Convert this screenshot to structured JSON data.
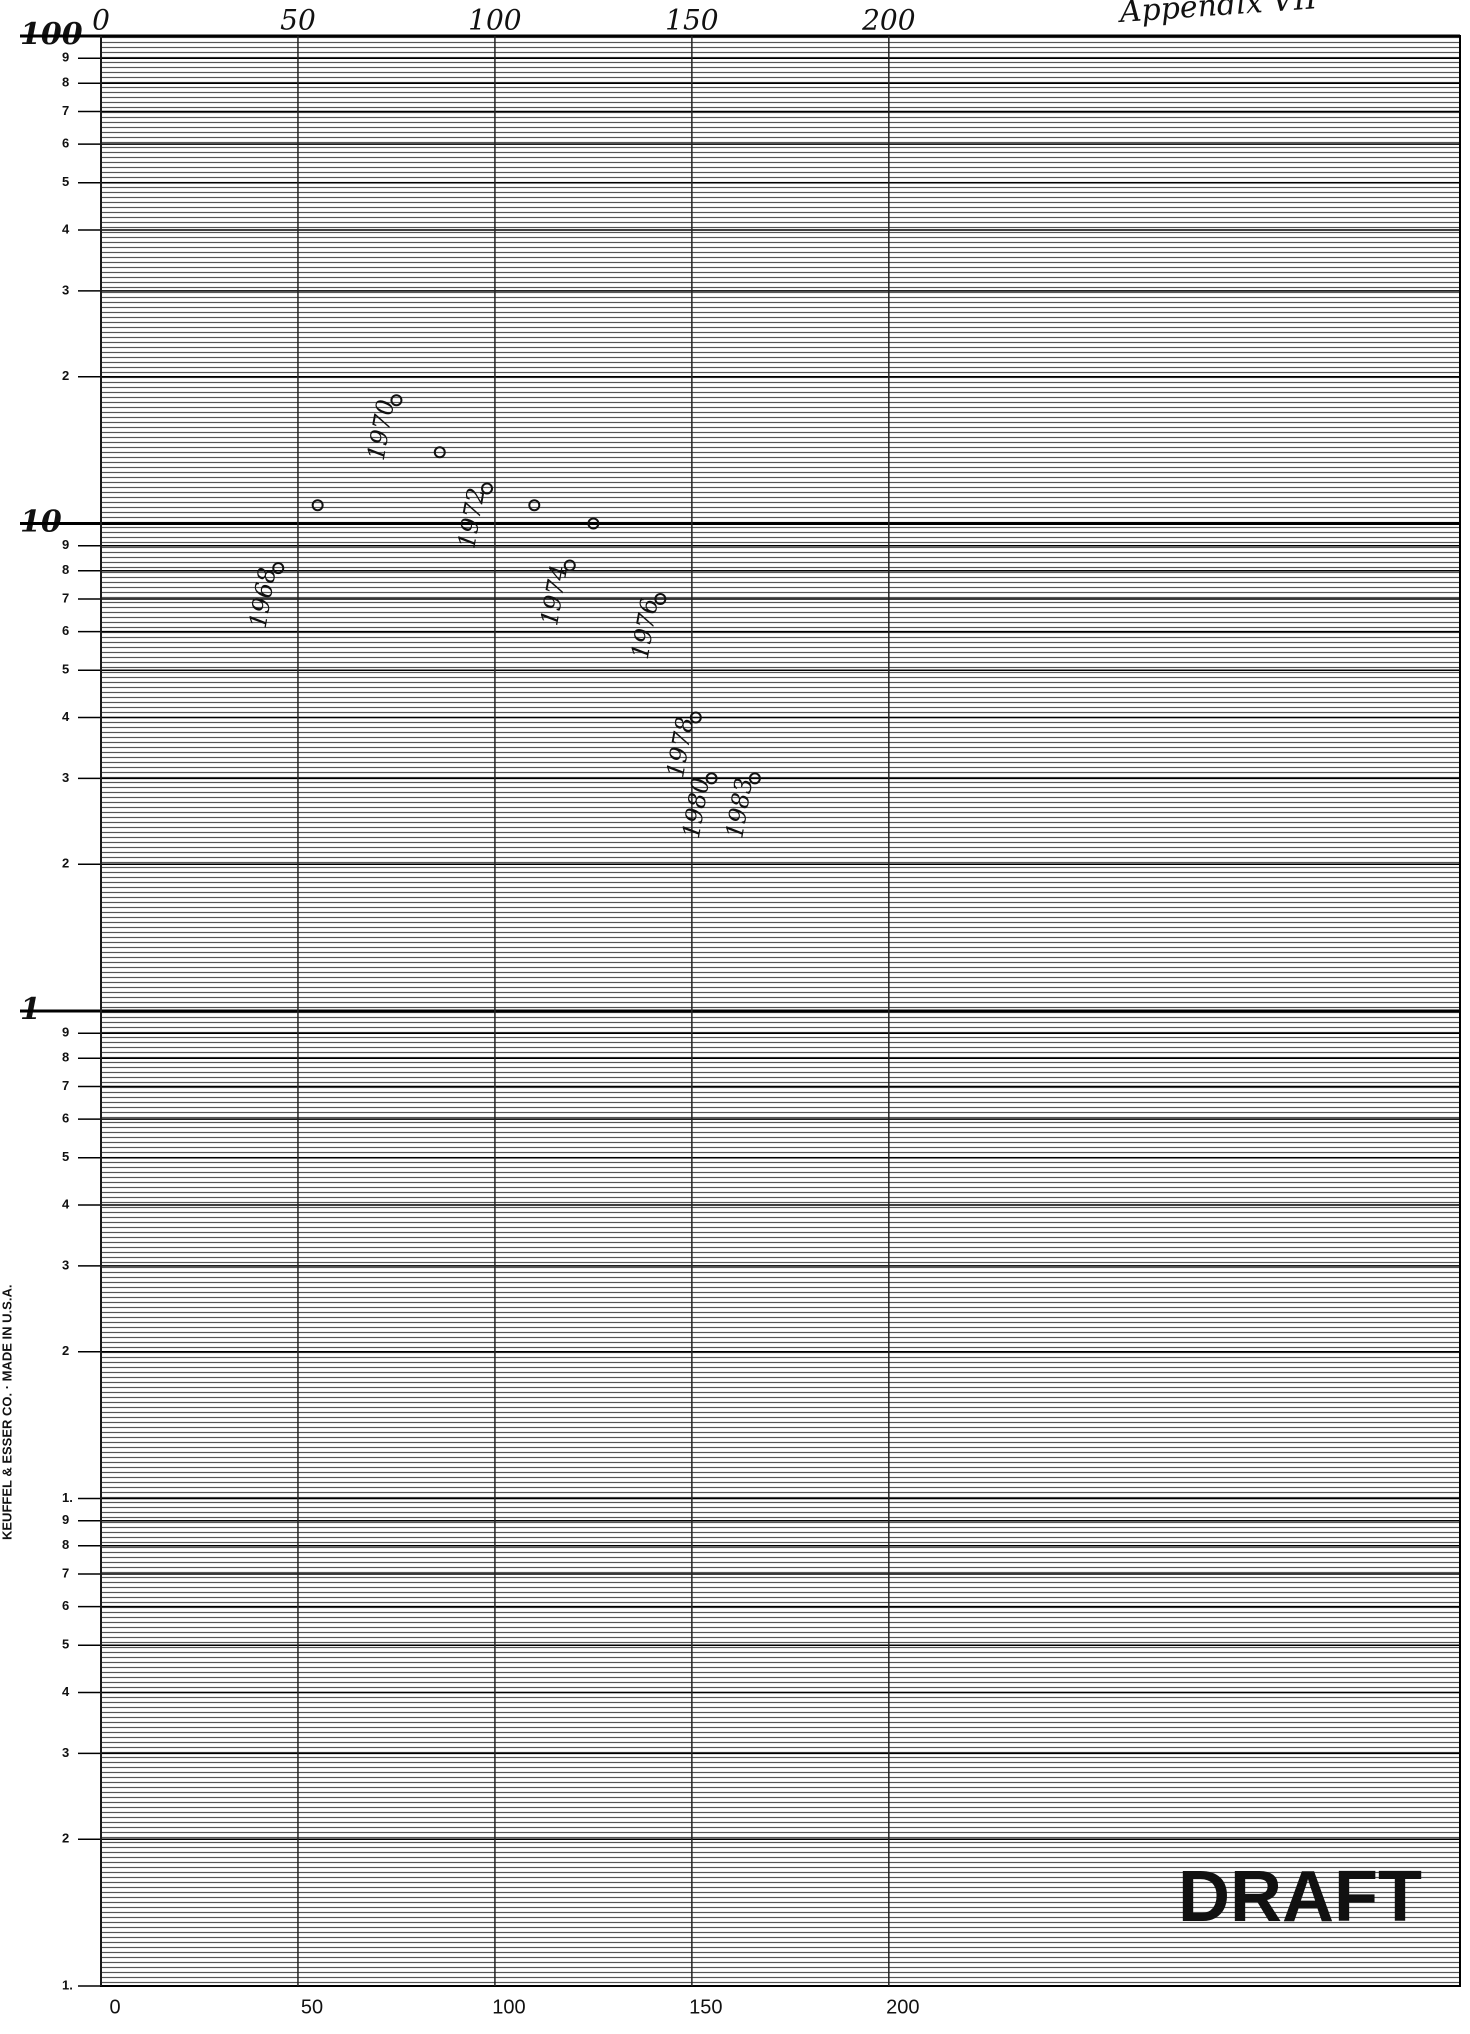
{
  "chart_data": {
    "type": "scatter",
    "log_y": true,
    "grid": true,
    "color": "#111111",
    "annotations": {
      "header": "Appendix VII",
      "stamp": "DRAFT",
      "maker": "KEUFFEL & ESSER CO. · MADE IN U.S.A."
    },
    "xlim": [
      0,
      345
    ],
    "xticks": [
      0,
      50,
      100,
      150,
      200
    ],
    "ylim": [
      0.01,
      100
    ],
    "yticks": [
      100,
      {
        "value": 90,
        "label": "9"
      },
      {
        "value": 80,
        "label": "8"
      },
      {
        "value": 70,
        "label": "7"
      },
      {
        "value": 60,
        "label": "6"
      },
      {
        "value": 50,
        "label": "5"
      },
      {
        "value": 40,
        "label": "4"
      },
      {
        "value": 30,
        "label": "3"
      },
      {
        "value": 20,
        "label": "2"
      },
      10,
      {
        "value": 9,
        "label": "9"
      },
      {
        "value": 8,
        "label": "8"
      },
      {
        "value": 7,
        "label": "7"
      },
      {
        "value": 6,
        "label": "6"
      },
      {
        "value": 5,
        "label": "5"
      },
      {
        "value": 4,
        "label": "4"
      },
      {
        "value": 3,
        "label": "3"
      },
      {
        "value": 2,
        "label": "2"
      },
      1,
      {
        "value": 0.9,
        "label": "9"
      },
      {
        "value": 0.8,
        "label": "8"
      },
      {
        "value": 0.7,
        "label": "7"
      },
      {
        "value": 0.6,
        "label": "6"
      },
      {
        "value": 0.5,
        "label": "5"
      },
      {
        "value": 0.4,
        "label": "4"
      },
      {
        "value": 0.3,
        "label": "3"
      },
      {
        "value": 0.2,
        "label": "2"
      },
      {
        "value": 0.1,
        "label": "1."
      },
      {
        "value": 0.09,
        "label": "9"
      },
      {
        "value": 0.08,
        "label": "8"
      },
      {
        "value": 0.07,
        "label": "7"
      },
      {
        "value": 0.06,
        "label": "6"
      },
      {
        "value": 0.05,
        "label": "5"
      },
      {
        "value": 0.04,
        "label": "4"
      },
      {
        "value": 0.03,
        "label": "3"
      },
      {
        "value": 0.02,
        "label": "2"
      },
      {
        "value": 0.01,
        "label": "1."
      }
    ],
    "series": [
      {
        "color": "#111111",
        "x": [
          45,
          55,
          75,
          86,
          98,
          110,
          125,
          119,
          142,
          151,
          155,
          166
        ],
        "values": [
          8.1,
          10.9,
          17.9,
          14,
          11.8,
          10.9,
          10,
          8.2,
          7,
          4,
          3,
          3
        ],
        "labels": [
          "1968",
          null,
          "1970",
          null,
          "1972",
          null,
          null,
          "1974",
          "1976",
          "1978",
          "1980",
          "1983"
        ]
      }
    ]
  }
}
